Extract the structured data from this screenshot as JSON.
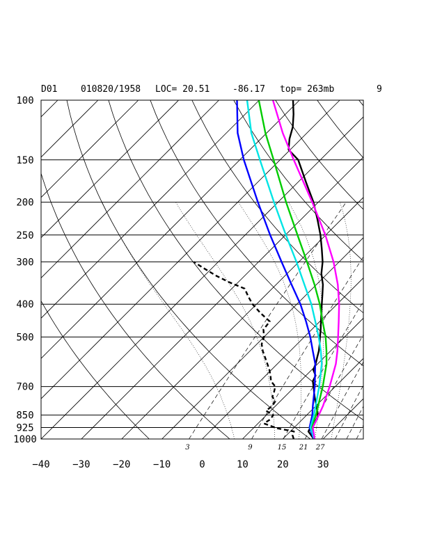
{
  "header": {
    "domain": "D01",
    "datetime": "010820/1958",
    "loc": "LOC= 20.51",
    "lon": "-86.17",
    "top": "top= 263mb",
    "number": "9"
  },
  "chart_data": {
    "type": "line",
    "title": "D01 010820/1958 LOC= 20.51 -86.17 top= 263mb 9",
    "xlabel": "",
    "ylabel": "",
    "xlim": [
      -40,
      40
    ],
    "plim": [
      1000,
      100
    ],
    "y_axis": "pressure (mb), log scale",
    "x_axis": "temperature (°C), skewed",
    "p_ticks": [
      100,
      150,
      200,
      250,
      300,
      400,
      500,
      700,
      850,
      925,
      1000
    ],
    "p_tick_labels": [
      "100",
      "150",
      "200",
      "250",
      "300",
      "400",
      "500",
      "700",
      "850",
      "925",
      "1000"
    ],
    "t_ticks": [
      -40,
      -30,
      -20,
      -10,
      0,
      10,
      20,
      30
    ],
    "t_tick_labels": [
      "−40",
      "−30",
      "−20",
      "−10",
      "0",
      "10",
      "20",
      "30"
    ],
    "mixing_ratio_labels": [
      "3",
      "9",
      "15",
      "21",
      "27"
    ],
    "series": [
      {
        "name": "temperature",
        "color": "#000000",
        "style": "solid",
        "points": [
          [
            1000,
            27.7
          ],
          [
            975,
            26.1
          ],
          [
            950,
            24.5
          ],
          [
            925,
            24.0
          ],
          [
            900,
            23.6
          ],
          [
            875,
            23.6
          ],
          [
            850,
            22.8
          ],
          [
            825,
            21.5
          ],
          [
            800,
            20.2
          ],
          [
            775,
            18.8
          ],
          [
            750,
            17.4
          ],
          [
            725,
            16.0
          ],
          [
            700,
            14.6
          ],
          [
            675,
            13.1
          ],
          [
            650,
            12.4
          ],
          [
            625,
            10.4
          ],
          [
            600,
            9.5
          ],
          [
            575,
            8.3
          ],
          [
            550,
            7.1
          ],
          [
            525,
            5.6
          ],
          [
            500,
            3.9
          ],
          [
            475,
            2.2
          ],
          [
            450,
            0.3
          ],
          [
            425,
            -1.7
          ],
          [
            400,
            -3.8
          ],
          [
            375,
            -6.0
          ],
          [
            350,
            -8.4
          ],
          [
            325,
            -11.5
          ],
          [
            300,
            -14.1
          ],
          [
            275,
            -17.5
          ],
          [
            250,
            -21.3
          ],
          [
            225,
            -25.9
          ],
          [
            200,
            -31.2
          ],
          [
            175,
            -37.9
          ],
          [
            150,
            -45.5
          ],
          [
            140,
            -50.4
          ],
          [
            130,
            -52.9
          ],
          [
            120,
            -55.0
          ],
          [
            110,
            -58.0
          ],
          [
            100,
            -61.6
          ]
        ]
      },
      {
        "name": "dewpoint",
        "color": "#000000",
        "style": "dashed",
        "points": [
          [
            1000,
            22.7
          ],
          [
            975,
            21.5
          ],
          [
            950,
            20.9
          ],
          [
            930,
            16.0
          ],
          [
            900,
            11.5
          ],
          [
            875,
            12.0
          ],
          [
            850,
            11.7
          ],
          [
            825,
            8.8
          ],
          [
            800,
            9.2
          ],
          [
            775,
            8.8
          ],
          [
            750,
            6.9
          ],
          [
            725,
            6.1
          ],
          [
            700,
            5.1
          ],
          [
            675,
            2.7
          ],
          [
            650,
            1.2
          ],
          [
            625,
            -0.5
          ],
          [
            600,
            -2.5
          ],
          [
            575,
            -4.6
          ],
          [
            550,
            -6.8
          ],
          [
            525,
            -8.8
          ],
          [
            500,
            -10.0
          ],
          [
            475,
            -12.0
          ],
          [
            450,
            -12.4
          ],
          [
            425,
            -16.8
          ],
          [
            400,
            -21.0
          ],
          [
            380,
            -23.9
          ],
          [
            360,
            -26.8
          ],
          [
            345,
            -32.1
          ],
          [
            330,
            -37.0
          ],
          [
            315,
            -41.5
          ],
          [
            300,
            -46.1
          ]
        ]
      },
      {
        "name": "parcel (blue)",
        "color": "#0000ff",
        "style": "solid",
        "points": [
          [
            1000,
            27.7
          ],
          [
            925,
            23.8
          ],
          [
            850,
            21.4
          ],
          [
            800,
            19.3
          ],
          [
            700,
            14.9
          ],
          [
            600,
            9.4
          ],
          [
            550,
            5.6
          ],
          [
            500,
            1.5
          ],
          [
            450,
            -3.4
          ],
          [
            400,
            -9.1
          ],
          [
            350,
            -16.2
          ],
          [
            300,
            -24.3
          ],
          [
            250,
            -33.8
          ],
          [
            200,
            -45.0
          ],
          [
            150,
            -59.0
          ],
          [
            125,
            -67.2
          ],
          [
            100,
            -75.5
          ]
        ]
      },
      {
        "name": "parcel (green)",
        "color": "#00cc00",
        "style": "solid",
        "points": [
          [
            1000,
            27.9
          ],
          [
            925,
            24.3
          ],
          [
            850,
            22.3
          ],
          [
            800,
            20.6
          ],
          [
            700,
            16.9
          ],
          [
            600,
            12.2
          ],
          [
            550,
            9.0
          ],
          [
            500,
            5.3
          ],
          [
            450,
            0.7
          ],
          [
            400,
            -4.3
          ],
          [
            350,
            -10.5
          ],
          [
            300,
            -18.0
          ],
          [
            250,
            -27.0
          ],
          [
            200,
            -38.0
          ],
          [
            150,
            -51.6
          ],
          [
            125,
            -60.3
          ],
          [
            100,
            -70.1
          ]
        ]
      },
      {
        "name": "parcel (cyan)",
        "color": "#00e5e5",
        "style": "solid",
        "points": [
          [
            1000,
            27.8
          ],
          [
            925,
            24.0
          ],
          [
            850,
            21.8
          ],
          [
            800,
            20.0
          ],
          [
            700,
            16.0
          ],
          [
            600,
            11.0
          ],
          [
            550,
            7.6
          ],
          [
            500,
            3.6
          ],
          [
            450,
            -1.1
          ],
          [
            400,
            -6.4
          ],
          [
            350,
            -13.0
          ],
          [
            300,
            -20.6
          ],
          [
            250,
            -29.9
          ],
          [
            200,
            -41.0
          ],
          [
            150,
            -55.0
          ],
          [
            125,
            -63.8
          ],
          [
            100,
            -73.0
          ]
        ]
      },
      {
        "name": "parcel (magenta)",
        "color": "#ff00ff",
        "style": "solid",
        "points": [
          [
            1000,
            27.9
          ],
          [
            925,
            24.6
          ],
          [
            850,
            23.0
          ],
          [
            800,
            21.8
          ],
          [
            700,
            18.6
          ],
          [
            600,
            14.5
          ],
          [
            550,
            11.7
          ],
          [
            500,
            8.4
          ],
          [
            450,
            4.7
          ],
          [
            400,
            0.5
          ],
          [
            350,
            -4.7
          ],
          [
            300,
            -11.4
          ],
          [
            250,
            -20.1
          ],
          [
            200,
            -31.5
          ],
          [
            150,
            -46.6
          ],
          [
            125,
            -56.0
          ],
          [
            100,
            -66.6
          ]
        ]
      }
    ]
  }
}
